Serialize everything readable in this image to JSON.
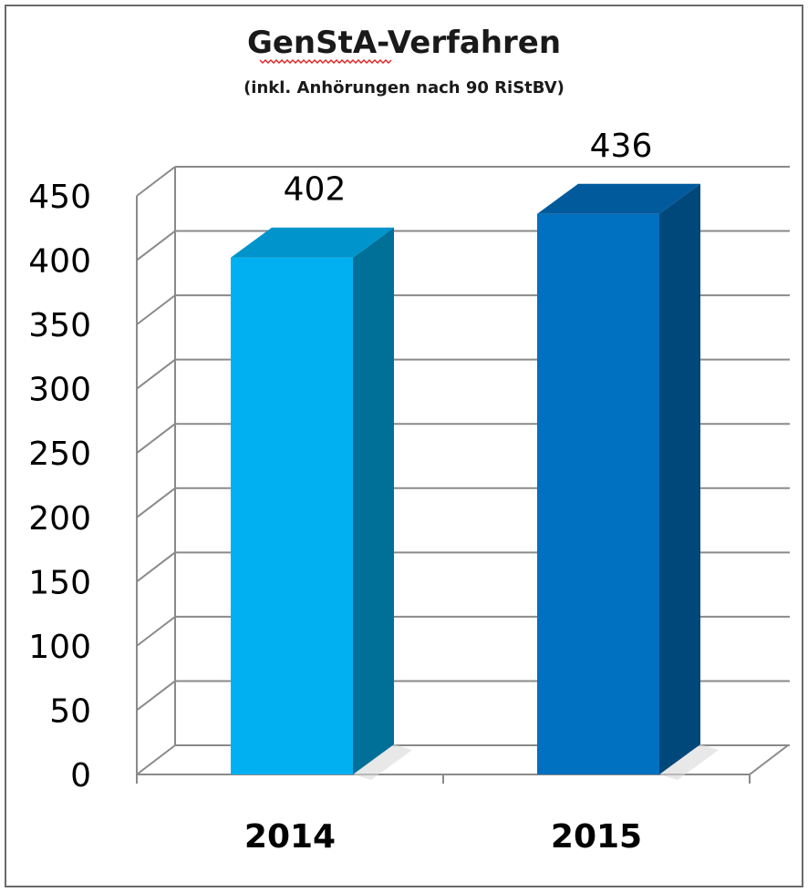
{
  "chart_data": {
    "type": "bar",
    "title": "GenStA-Verfahren",
    "subtitle": "(inkl. Anhörungen nach 90 RiStBV)",
    "categories": [
      "2014",
      "2015"
    ],
    "values": [
      402,
      436
    ],
    "data_labels": [
      "402",
      "436"
    ],
    "y_ticks": [
      "0",
      "50",
      "100",
      "150",
      "200",
      "250",
      "300",
      "350",
      "400",
      "450"
    ],
    "ylim": [
      0,
      450
    ],
    "grid": true,
    "legend": "none",
    "style": "3d-column",
    "colors": {
      "bar_2014_front": "#00b0f0",
      "bar_2014_side": "#007099",
      "bar_2014_top": "#0094cc",
      "bar_2015_front": "#0070c0",
      "bar_2015_side": "#00477a",
      "bar_2015_top": "#005a9c",
      "gridline": "#8a8a8a",
      "title_underline": "#e02020"
    }
  }
}
